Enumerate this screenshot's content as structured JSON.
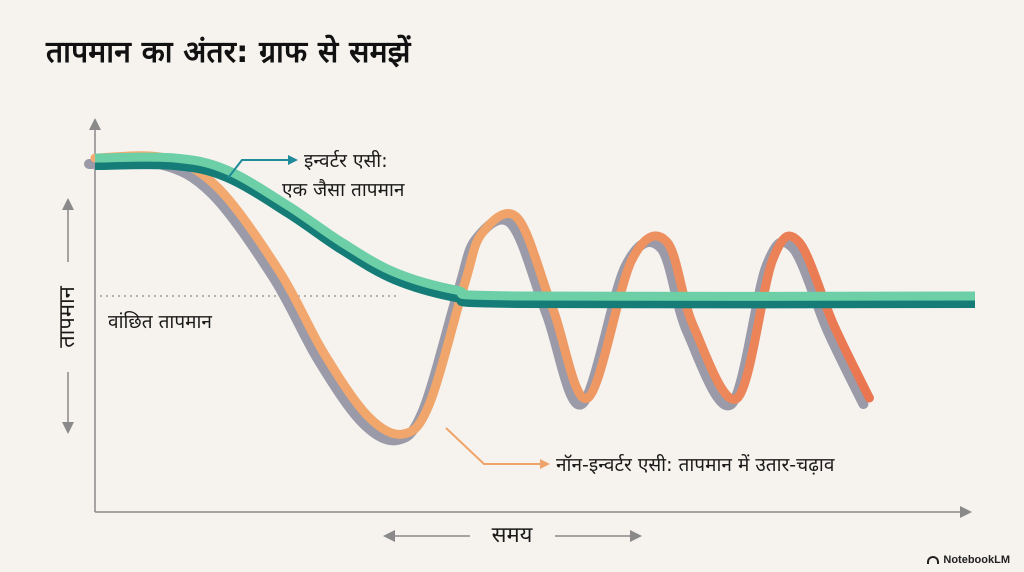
{
  "title": "तापमान का अंतर: ग्राफ से समझें",
  "brand": "NotebookLM",
  "colors": {
    "background": "#f6f3ee",
    "inverter_light": "#6ccfa6",
    "inverter_dark": "#167c78",
    "non_inverter_orange": "#f0a46a",
    "non_inverter_red": "#e8694a",
    "non_inverter_gray": "#9a9aa8",
    "arrow_teal": "#1e8a9a",
    "arrow_orange": "#f0a46a",
    "axis": "#8a8a8a"
  },
  "chart_data": {
    "type": "line",
    "title": "तापमान का अंतर: ग्राफ से समझें",
    "xlabel": "समय",
    "ylabel": "तापमान",
    "xlim": [
      0,
      100
    ],
    "ylim": [
      0,
      100
    ],
    "grid": false,
    "setpoint": {
      "label": "वांछित तापमान",
      "y": 54
    },
    "series": [
      {
        "name": "इन्वर्टर एसी: एक जैसा तापमान",
        "x": [
          0,
          9,
          15,
          22,
          28,
          34,
          41,
          48,
          100
        ],
        "y": [
          100,
          100,
          96,
          84,
          72,
          62,
          56,
          54,
          54
        ]
      },
      {
        "name": "नॉन-इन्वर्टर एसी: तापमान में उतार-चढ़ाव",
        "x": [
          0,
          8,
          14,
          21,
          26,
          31,
          35,
          38,
          42,
          44,
          48,
          52,
          56,
          61,
          65,
          68,
          73,
          77,
          80,
          84,
          88
        ],
        "y": [
          100,
          100,
          90,
          62,
          35,
          14,
          8,
          18,
          58,
          75,
          80,
          50,
          20,
          66,
          72,
          44,
          20,
          66,
          72,
          44,
          20
        ]
      }
    ],
    "annotations": [
      {
        "text": "इन्वर्टर एसी:",
        "target": "इन्वर्टर एसी"
      },
      {
        "text": "एक जैसा तापमान",
        "target": "इन्वर्टर एसी"
      },
      {
        "text": "नॉन-इन्वर्टर एसी: तापमान में उतार-चढ़ाव",
        "target": "नॉन-इन्वर्टर एसी"
      }
    ]
  }
}
